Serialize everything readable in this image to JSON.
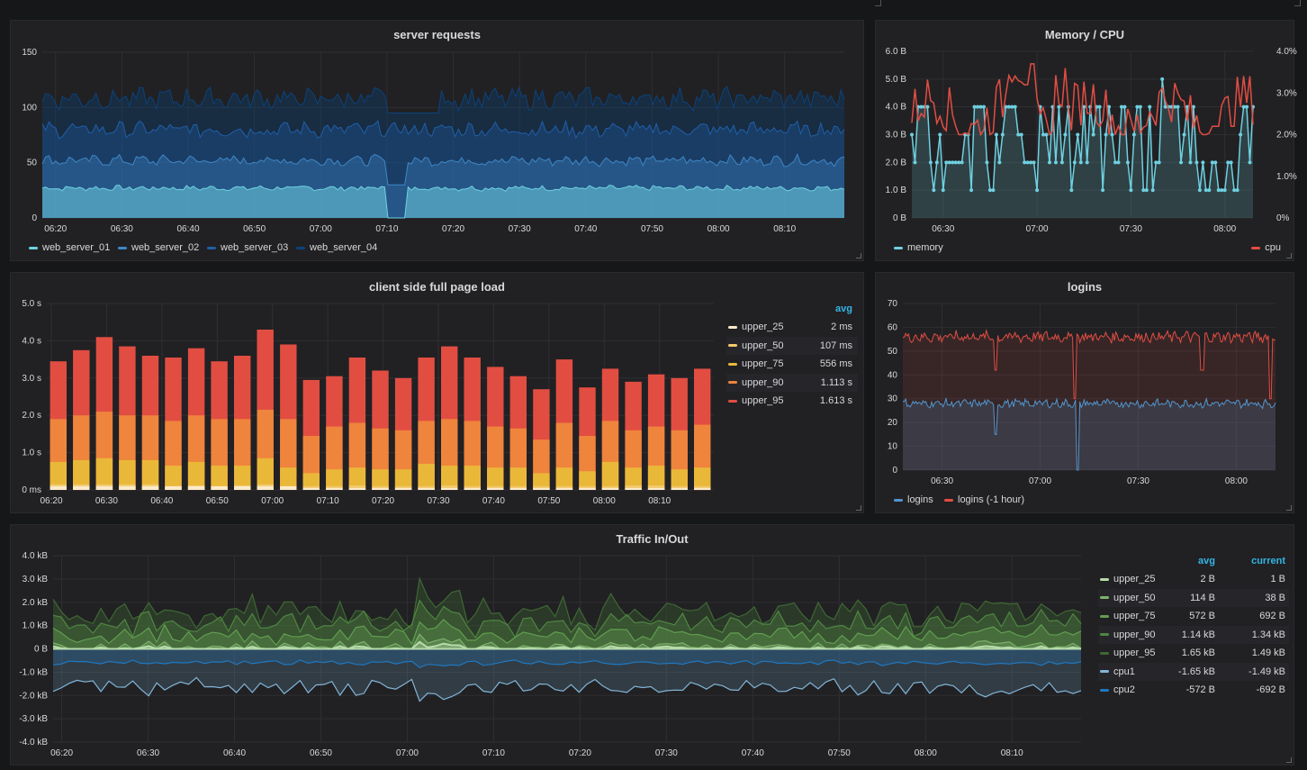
{
  "dashboard": {
    "panels": {
      "server_requests": {
        "title": "server requests",
        "y_ticks": [
          "150",
          "100",
          "50",
          "0"
        ],
        "x_ticks": [
          "06:20",
          "06:30",
          "06:40",
          "06:50",
          "07:00",
          "07:10",
          "07:20",
          "07:30",
          "07:40",
          "07:50",
          "08:00",
          "08:10"
        ],
        "legend": [
          {
            "label": "web_server_01",
            "color": "#6ed0e0"
          },
          {
            "label": "web_server_02",
            "color": "#3f87c6"
          },
          {
            "label": "web_server_03",
            "color": "#1f5fa8"
          },
          {
            "label": "web_server_04",
            "color": "#0a437c"
          }
        ]
      },
      "memory_cpu": {
        "title": "Memory / CPU",
        "y_left_ticks": [
          "6.0 B",
          "5.0 B",
          "4.0 B",
          "3.0 B",
          "2.0 B",
          "1.0 B",
          "0 B"
        ],
        "y_right_ticks": [
          "4.0%",
          "3.0%",
          "2.0%",
          "1.0%",
          "0%"
        ],
        "x_ticks": [
          "06:30",
          "07:00",
          "07:30",
          "08:00"
        ],
        "legend": [
          {
            "label": "memory",
            "color": "#6ed0e0"
          },
          {
            "label": "cpu",
            "color": "#e24d42"
          }
        ]
      },
      "page_load": {
        "title": "client side full page load",
        "y_ticks": [
          "5.0 s",
          "4.0 s",
          "3.0 s",
          "2.0 s",
          "1.0 s",
          "0 ms"
        ],
        "x_ticks": [
          "06:20",
          "06:30",
          "06:40",
          "06:50",
          "07:00",
          "07:10",
          "07:20",
          "07:30",
          "07:40",
          "07:50",
          "08:00",
          "08:10"
        ],
        "legend_header_avg": "avg",
        "legend": [
          {
            "label": "upper_25",
            "avg": "2 ms",
            "color": "#fceaca"
          },
          {
            "label": "upper_50",
            "avg": "107 ms",
            "color": "#f2c96d"
          },
          {
            "label": "upper_75",
            "avg": "556 ms",
            "color": "#eab839"
          },
          {
            "label": "upper_90",
            "avg": "1.113 s",
            "color": "#ef843c"
          },
          {
            "label": "upper_95",
            "avg": "1.613 s",
            "color": "#e24d42"
          }
        ]
      },
      "logins": {
        "title": "logins",
        "y_ticks": [
          "70",
          "60",
          "50",
          "40",
          "30",
          "20",
          "10",
          "0"
        ],
        "x_ticks": [
          "06:30",
          "07:00",
          "07:30",
          "08:00"
        ],
        "legend": [
          {
            "label": "logins",
            "color": "#5195ce"
          },
          {
            "label": "logins (-1 hour)",
            "color": "#e24d42"
          }
        ]
      },
      "traffic": {
        "title": "Traffic In/Out",
        "y_ticks": [
          "4.0 kB",
          "3.0 kB",
          "2.0 kB",
          "1.0 kB",
          "0 B",
          "-1.0 kB",
          "-2.0 kB",
          "-3.0 kB",
          "-4.0 kB"
        ],
        "x_ticks": [
          "06:20",
          "06:30",
          "06:40",
          "06:50",
          "07:00",
          "07:10",
          "07:20",
          "07:30",
          "07:40",
          "07:50",
          "08:00",
          "08:10"
        ],
        "legend_header_avg": "avg",
        "legend_header_current": "current",
        "legend": [
          {
            "label": "upper_25",
            "avg": "2 B",
            "current": "1 B",
            "color": "#b7dbab"
          },
          {
            "label": "upper_50",
            "avg": "114 B",
            "current": "38 B",
            "color": "#7eb26d"
          },
          {
            "label": "upper_75",
            "avg": "572 B",
            "current": "692 B",
            "color": "#629e51"
          },
          {
            "label": "upper_90",
            "avg": "1.14 kB",
            "current": "1.34 kB",
            "color": "#508642"
          },
          {
            "label": "upper_95",
            "avg": "1.65 kB",
            "current": "1.49 kB",
            "color": "#3f6833"
          },
          {
            "label": "cpu1",
            "avg": "-1.65 kB",
            "current": "-1.49 kB",
            "color": "#82b5d8"
          },
          {
            "label": "cpu2",
            "avg": "-572 B",
            "current": "-692 B",
            "color": "#1f78c1"
          }
        ]
      }
    }
  },
  "chart_data": [
    {
      "type": "area",
      "title": "server requests",
      "ylim": [
        0,
        150
      ],
      "xlim": [
        "06:18",
        "08:19"
      ],
      "series": [
        {
          "name": "web_server_01",
          "mean": 27,
          "noise": 2,
          "dips": [
            [
              "07:10",
              "07:13",
              0
            ]
          ]
        },
        {
          "name": "web_server_02",
          "mean": 52,
          "noise": 4,
          "dips": [
            [
              "07:10",
              "07:13",
              30
            ]
          ]
        },
        {
          "name": "web_server_03",
          "mean": 80,
          "noise": 6
        },
        {
          "name": "web_server_04",
          "mean": 108,
          "noise": 8,
          "dips": [
            [
              "07:10",
              "07:18",
              95
            ]
          ]
        }
      ]
    },
    {
      "type": "line",
      "title": "Memory / CPU",
      "xlim": [
        "06:20",
        "08:09"
      ],
      "ylim_left": [
        0,
        6
      ],
      "ylim_right": [
        0,
        4
      ],
      "series": [
        {
          "name": "memory",
          "axis": "left",
          "values_range": [
            0,
            5
          ],
          "typical": [
            1,
            4
          ]
        },
        {
          "name": "cpu",
          "axis": "right",
          "values_range": [
            2,
            3.7
          ],
          "typical": [
            2,
            3
          ]
        }
      ]
    },
    {
      "type": "bar",
      "title": "client side full page load",
      "ylim": [
        0,
        5
      ],
      "categories": [
        "06:20",
        "06:24",
        "06:28",
        "06:32",
        "06:36",
        "06:40",
        "06:44",
        "06:48",
        "06:52",
        "06:56",
        "07:00",
        "07:04",
        "07:08",
        "07:12",
        "07:16",
        "07:20",
        "07:24",
        "07:28",
        "07:32",
        "07:36",
        "07:40",
        "07:44",
        "07:48",
        "07:52",
        "07:56",
        "08:00",
        "08:04",
        "08:08",
        "08:12"
      ],
      "series": [
        {
          "name": "upper_25",
          "values": [
            0.1,
            0.1,
            0.1,
            0.1,
            0.1,
            0.1,
            0.1,
            0.1,
            0.1,
            0.1,
            0.1,
            0.05,
            0.05,
            0.05,
            0.05,
            0.05,
            0.05,
            0.05,
            0.05,
            0.05,
            0.05,
            0.05,
            0.05,
            0.05,
            0.05,
            0.05,
            0.05,
            0.05,
            0.05
          ]
        },
        {
          "name": "upper_50",
          "values": [
            0.15,
            0.15,
            0.15,
            0.15,
            0.15,
            0.1,
            0.12,
            0.1,
            0.12,
            0.15,
            0.1,
            0.1,
            0.1,
            0.12,
            0.1,
            0.1,
            0.1,
            0.12,
            0.1,
            0.1,
            0.1,
            0.1,
            0.1,
            0.1,
            0.1,
            0.12,
            0.12,
            0.1,
            0.1
          ]
        },
        {
          "name": "upper_75",
          "values": [
            0.75,
            0.8,
            0.85,
            0.8,
            0.8,
            0.65,
            0.75,
            0.65,
            0.65,
            0.85,
            0.6,
            0.45,
            0.55,
            0.6,
            0.55,
            0.55,
            0.7,
            0.65,
            0.65,
            0.6,
            0.6,
            0.45,
            0.6,
            0.5,
            0.75,
            0.6,
            0.65,
            0.55,
            0.6
          ]
        },
        {
          "name": "upper_90",
          "values": [
            1.9,
            2.0,
            2.1,
            2.0,
            2.0,
            1.85,
            2.0,
            1.9,
            1.9,
            2.15,
            1.9,
            1.45,
            1.7,
            1.8,
            1.65,
            1.6,
            1.85,
            1.9,
            1.85,
            1.7,
            1.65,
            1.35,
            1.8,
            1.45,
            1.85,
            1.6,
            1.7,
            1.6,
            1.75
          ]
        },
        {
          "name": "upper_95",
          "values": [
            3.45,
            3.75,
            4.1,
            3.85,
            3.6,
            3.55,
            3.8,
            3.45,
            3.6,
            4.3,
            3.9,
            2.95,
            3.05,
            3.55,
            3.2,
            3.0,
            3.55,
            3.85,
            3.55,
            3.3,
            3.05,
            2.7,
            3.5,
            2.75,
            3.25,
            2.9,
            3.1,
            3.0,
            3.25
          ]
        }
      ]
    },
    {
      "type": "area",
      "title": "logins",
      "ylim": [
        0,
        70
      ],
      "xlim": [
        "06:20",
        "08:10"
      ],
      "series": [
        {
          "name": "logins",
          "mean": 28,
          "noise": 1.5,
          "dips": [
            [
              "06:46",
              "06:47",
              15
            ],
            [
              "07:11",
              "07:12",
              0
            ]
          ]
        },
        {
          "name": "logins (-1 hour)",
          "mean": 56,
          "noise": 2,
          "dips": [
            [
              "06:46",
              "06:47",
              42
            ],
            [
              "07:10",
              "07:11",
              30
            ],
            [
              "07:49",
              "07:50",
              42
            ],
            [
              "08:10",
              "08:11",
              30
            ]
          ]
        }
      ]
    },
    {
      "type": "area",
      "title": "Traffic In/Out",
      "ylim": [
        -4,
        4
      ],
      "xlim": [
        "06:19",
        "08:18"
      ],
      "series": [
        {
          "name": "upper_25",
          "approx": 0
        },
        {
          "name": "upper_50",
          "approx": 0.1
        },
        {
          "name": "upper_75",
          "approx": 0.6
        },
        {
          "name": "upper_90",
          "approx": 1.1
        },
        {
          "name": "upper_95",
          "approx": 1.6
        },
        {
          "name": "cpu1",
          "approx": -1.65
        },
        {
          "name": "cpu2",
          "approx": -0.6
        }
      ]
    }
  ]
}
